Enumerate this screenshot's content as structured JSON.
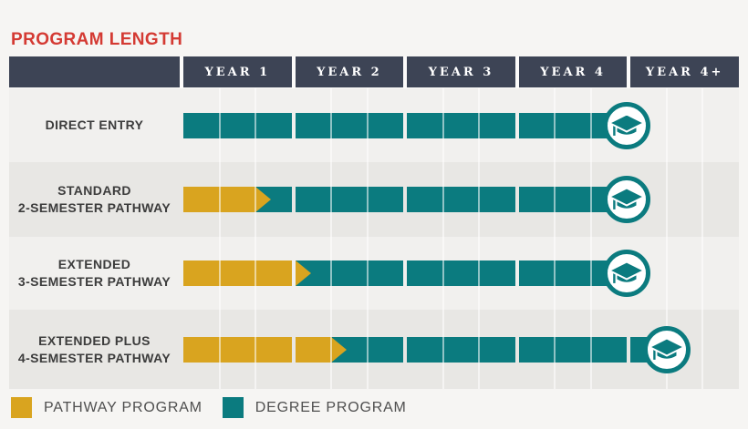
{
  "title": "PROGRAM LENGTH",
  "chart_data": {
    "type": "gantt",
    "columns": [
      "YEAR 1",
      "YEAR 2",
      "YEAR 3",
      "YEAR 4",
      "YEAR 4+"
    ],
    "subcells_per_column": 3,
    "unit": "semester",
    "rows": [
      {
        "label_lines": [
          "DIRECT ENTRY"
        ],
        "pathway_semesters": 0,
        "degree_end_semester": 12,
        "graduation_at_semester": 12
      },
      {
        "label_lines": [
          "STANDARD",
          "2-SEMESTER PATHWAY"
        ],
        "pathway_semesters": 2,
        "degree_end_semester": 12,
        "graduation_at_semester": 12
      },
      {
        "label_lines": [
          "EXTENDED",
          "3-SEMESTER PATHWAY"
        ],
        "pathway_semesters": 3,
        "degree_end_semester": 12,
        "graduation_at_semester": 12
      },
      {
        "label_lines": [
          "EXTENDED PLUS",
          "4-SEMESTER PATHWAY"
        ],
        "pathway_semesters": 4,
        "degree_end_semester": 13,
        "graduation_at_semester": 13
      }
    ]
  },
  "legend": [
    {
      "label": "PATHWAY PROGRAM",
      "color": "#d9a41f"
    },
    {
      "label": "DEGREE PROGRAM",
      "color": "#0b7b7f"
    }
  ],
  "icons": {
    "graduation_cap": "graduation-cap-icon"
  },
  "colors": {
    "title": "#d43a33",
    "header_bg": "#3d4455",
    "header_text": "#ffffff",
    "pathway": "#d9a41f",
    "degree": "#0b7b7f",
    "row_band_light": "#f1f0ee",
    "row_band_dark": "#e8e7e4",
    "page_bg": "#f6f5f3",
    "label_text": "#3c3c3c",
    "legend_text": "#4f4f4f"
  }
}
